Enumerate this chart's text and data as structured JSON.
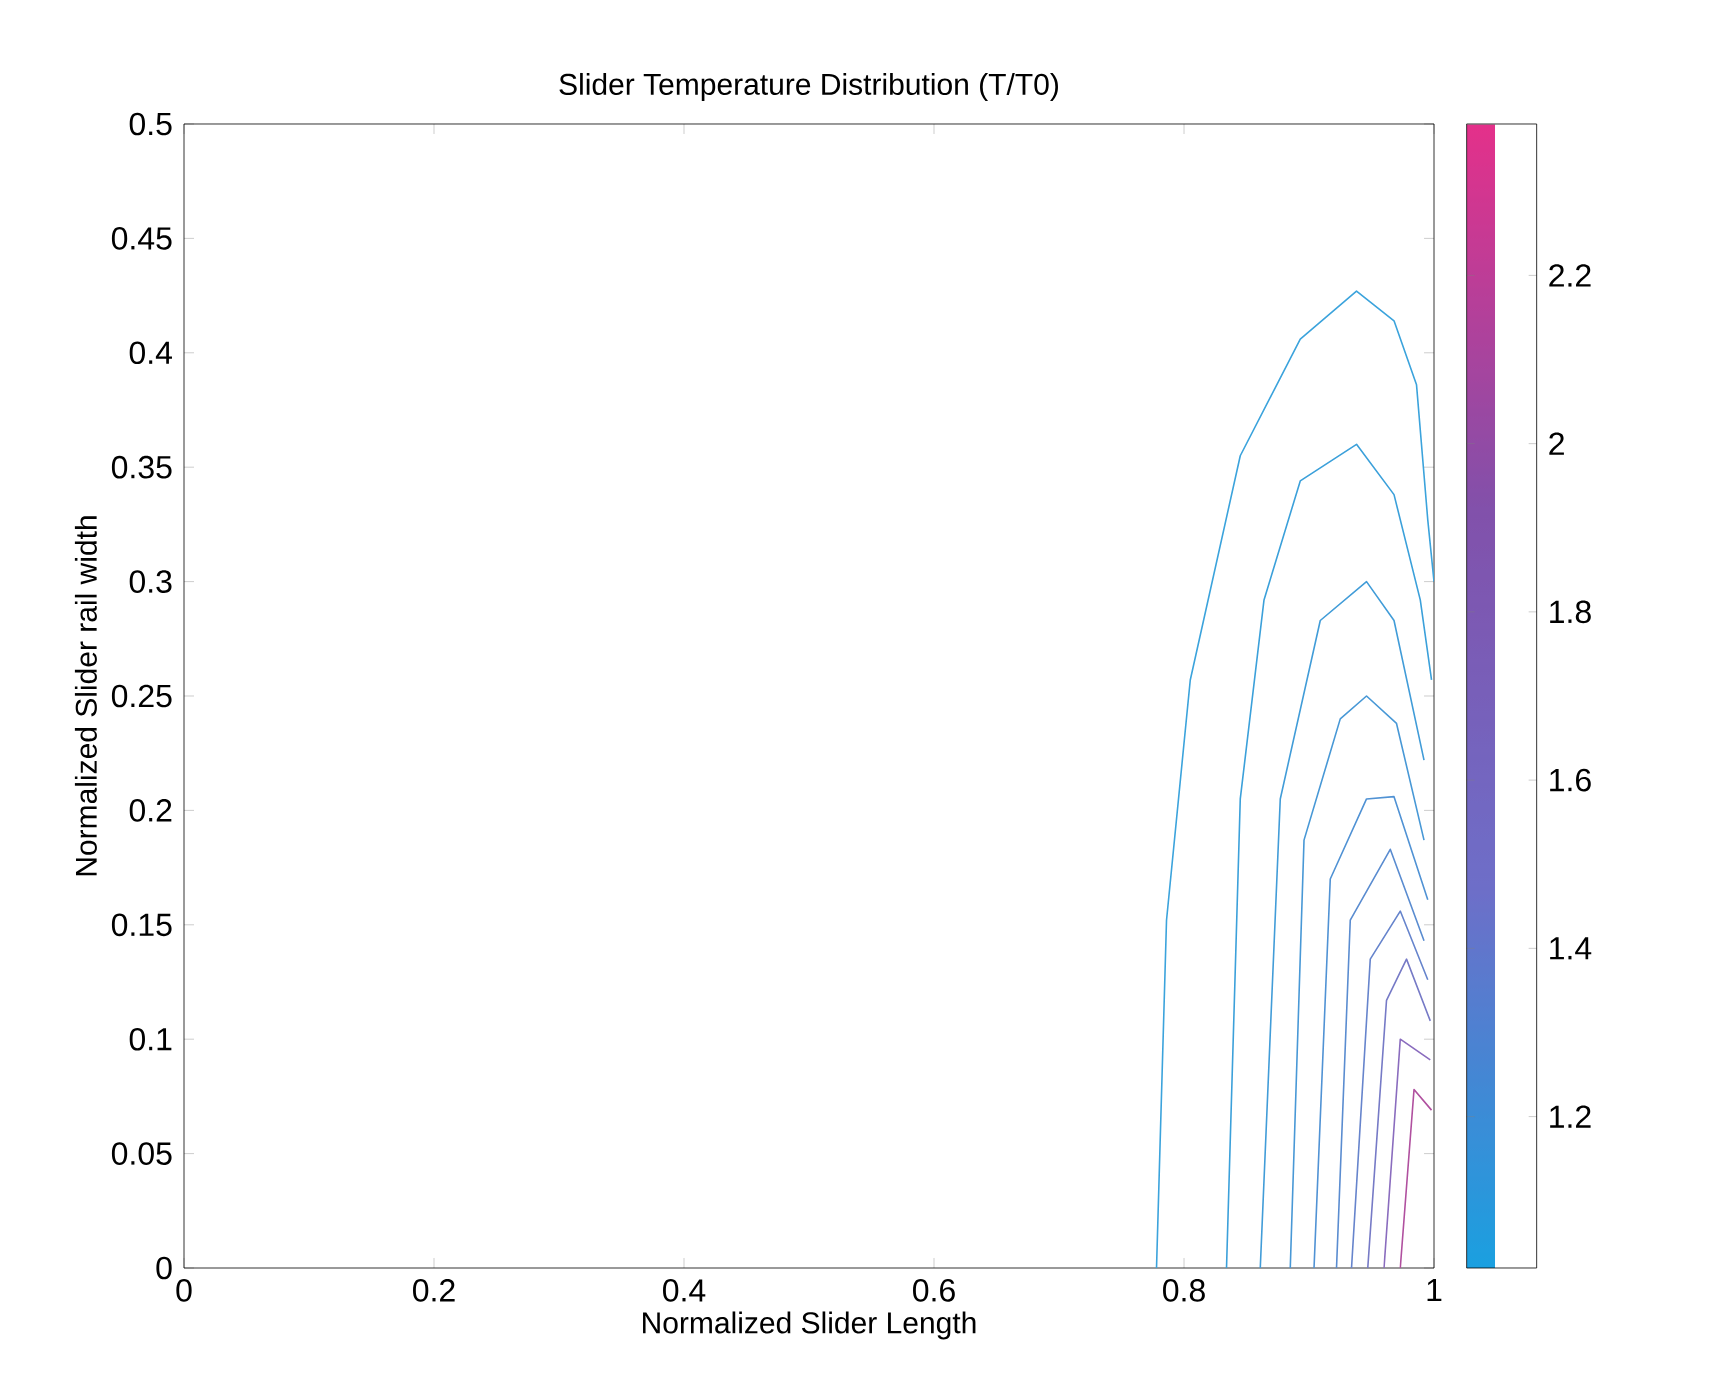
{
  "chart_data": {
    "type": "line",
    "title": "Slider Temperature Distribution (T/T0)",
    "xlabel": "Normalized Slider Length",
    "ylabel": "Normalized Slider rail width",
    "xlim": [
      0,
      1
    ],
    "ylim": [
      0,
      0.5
    ],
    "xticks": [
      0,
      0.2,
      0.4,
      0.6,
      0.8,
      1
    ],
    "yticks": [
      0,
      0.05,
      0.1,
      0.15,
      0.2,
      0.25,
      0.3,
      0.35,
      0.4,
      0.45,
      0.5
    ],
    "clim": [
      1.02,
      2.38
    ],
    "cticks": [
      1.2,
      1.4,
      1.6,
      1.8,
      2,
      2.2
    ],
    "grid": false,
    "marker": "none",
    "line_style": "solid",
    "series": [
      {
        "color": "#3ba3dc",
        "x": [
          0.778,
          0.786,
          0.805,
          0.845,
          0.893,
          0.938,
          0.968,
          0.986,
          0.995,
          1
        ],
        "values": [
          0,
          0.152,
          0.257,
          0.355,
          0.406,
          0.427,
          0.414,
          0.386,
          0.327,
          0.3
        ]
      },
      {
        "color": "#3ba0da",
        "x": [
          0.834,
          0.845,
          0.864,
          0.893,
          0.938,
          0.968,
          0.989,
          0.998
        ],
        "values": [
          0,
          0.205,
          0.292,
          0.344,
          0.36,
          0.338,
          0.292,
          0.257
        ]
      },
      {
        "color": "#419cd8",
        "x": [
          0.861,
          0.877,
          0.909,
          0.946,
          0.968,
          0.992
        ],
        "values": [
          0,
          0.205,
          0.283,
          0.3,
          0.283,
          0.222
        ]
      },
      {
        "color": "#4898d6",
        "x": [
          0.885,
          0.896,
          0.925,
          0.946,
          0.97,
          0.992
        ],
        "values": [
          0,
          0.187,
          0.24,
          0.25,
          0.238,
          0.187
        ]
      },
      {
        "color": "#5092d4",
        "x": [
          0.904,
          0.917,
          0.946,
          0.968,
          0.995
        ],
        "values": [
          0,
          0.17,
          0.205,
          0.206,
          0.161
        ]
      },
      {
        "color": "#5a8cd0",
        "x": [
          0.922,
          0.933,
          0.965,
          0.992
        ],
        "values": [
          0,
          0.152,
          0.183,
          0.143
        ]
      },
      {
        "color": "#6684cc",
        "x": [
          0.934,
          0.949,
          0.973,
          0.995
        ],
        "values": [
          0,
          0.135,
          0.156,
          0.126
        ]
      },
      {
        "color": "#767ac6",
        "x": [
          0.947,
          0.962,
          0.978,
          0.997
        ],
        "values": [
          0,
          0.117,
          0.135,
          0.108
        ]
      },
      {
        "color": "#8a6cbe",
        "x": [
          0.96,
          0.973,
          0.997
        ],
        "values": [
          0,
          0.1,
          0.091
        ]
      },
      {
        "color": "#b0509f",
        "x": [
          0.973,
          0.984,
          0.998
        ],
        "values": [
          0,
          0.078,
          0.069
        ]
      }
    ]
  }
}
